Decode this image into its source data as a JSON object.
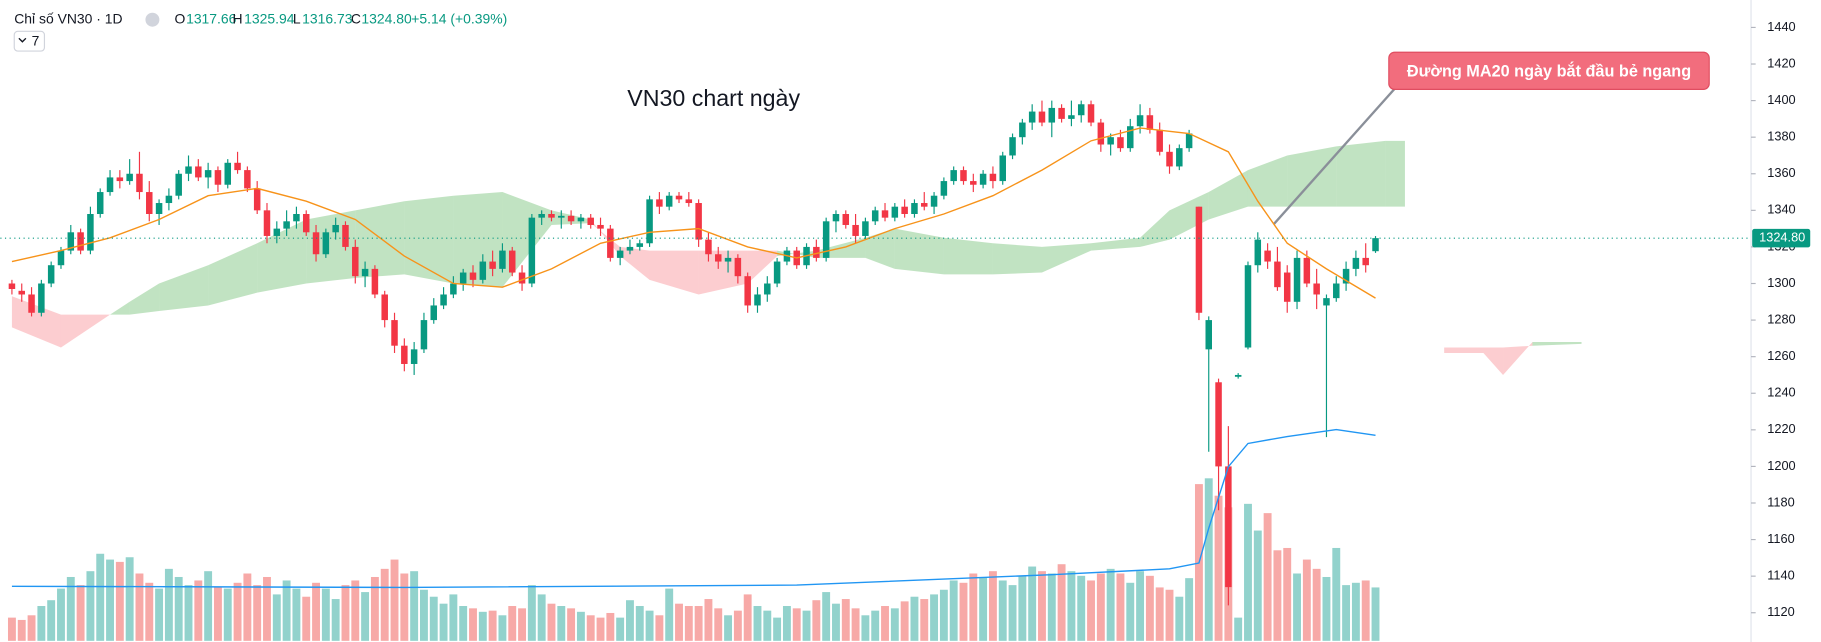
{
  "header": {
    "symbol": "Chỉ số VN30 · 1D",
    "o_label": "O",
    "o": "1317.66",
    "h_label": "H",
    "h": "1325.94",
    "l_label": "L",
    "l": "1316.73",
    "c_label": "C",
    "c": "1324.80",
    "change": "+5.14 (+0.39%)",
    "indicators": "7"
  },
  "chart_data": {
    "type": "candlestick",
    "title": "VN30 chart ngày",
    "annotation": "Đường MA20 ngày bắt đầu bẻ ngang",
    "up_color": "#089981",
    "down_color": "#f23645",
    "ylim": [
      1104,
      1455
    ],
    "yticks": [
      1440,
      1420,
      1400,
      1380,
      1360,
      1340,
      1320,
      1300,
      1280,
      1260,
      1240,
      1220,
      1200,
      1180,
      1160,
      1140,
      1120
    ],
    "grid": false,
    "ohlc": [
      [
        1300,
        1302,
        1294,
        1297
      ],
      [
        1296,
        1300,
        1290,
        1294
      ],
      [
        1294,
        1298,
        1282,
        1284
      ],
      [
        1284,
        1302,
        1282,
        1300
      ],
      [
        1300,
        1312,
        1298,
        1310
      ],
      [
        1310,
        1320,
        1308,
        1318
      ],
      [
        1318,
        1332,
        1316,
        1328
      ],
      [
        1328,
        1330,
        1316,
        1318
      ],
      [
        1318,
        1342,
        1316,
        1338
      ],
      [
        1338,
        1352,
        1336,
        1350
      ],
      [
        1350,
        1362,
        1348,
        1358
      ],
      [
        1358,
        1362,
        1352,
        1356
      ],
      [
        1356,
        1368,
        1354,
        1360
      ],
      [
        1360,
        1372,
        1346,
        1350
      ],
      [
        1350,
        1356,
        1334,
        1338
      ],
      [
        1338,
        1346,
        1332,
        1344
      ],
      [
        1344,
        1352,
        1340,
        1348
      ],
      [
        1348,
        1362,
        1346,
        1360
      ],
      [
        1360,
        1370,
        1356,
        1364
      ],
      [
        1364,
        1368,
        1356,
        1358
      ],
      [
        1358,
        1366,
        1352,
        1362
      ],
      [
        1362,
        1364,
        1350,
        1354
      ],
      [
        1354,
        1368,
        1352,
        1366
      ],
      [
        1366,
        1372,
        1360,
        1362
      ],
      [
        1362,
        1364,
        1350,
        1352
      ],
      [
        1352,
        1356,
        1338,
        1340
      ],
      [
        1340,
        1344,
        1322,
        1326
      ],
      [
        1326,
        1334,
        1322,
        1330
      ],
      [
        1330,
        1340,
        1326,
        1334
      ],
      [
        1334,
        1342,
        1330,
        1338
      ],
      [
        1338,
        1340,
        1326,
        1328
      ],
      [
        1328,
        1332,
        1312,
        1316
      ],
      [
        1316,
        1330,
        1314,
        1328
      ],
      [
        1328,
        1336,
        1324,
        1332
      ],
      [
        1332,
        1334,
        1318,
        1320
      ],
      [
        1320,
        1324,
        1300,
        1304
      ],
      [
        1304,
        1312,
        1298,
        1308
      ],
      [
        1308,
        1310,
        1292,
        1294
      ],
      [
        1294,
        1296,
        1276,
        1280
      ],
      [
        1280,
        1284,
        1262,
        1266
      ],
      [
        1266,
        1270,
        1252,
        1256
      ],
      [
        1256,
        1268,
        1250,
        1264
      ],
      [
        1264,
        1284,
        1262,
        1280
      ],
      [
        1280,
        1292,
        1278,
        1288
      ],
      [
        1288,
        1298,
        1286,
        1294
      ],
      [
        1294,
        1304,
        1292,
        1300
      ],
      [
        1300,
        1308,
        1296,
        1306
      ],
      [
        1306,
        1310,
        1298,
        1302
      ],
      [
        1302,
        1316,
        1300,
        1312
      ],
      [
        1312,
        1318,
        1304,
        1308
      ],
      [
        1308,
        1322,
        1306,
        1318
      ],
      [
        1318,
        1320,
        1304,
        1306
      ],
      [
        1306,
        1310,
        1296,
        1300
      ],
      [
        1300,
        1338,
        1298,
        1336
      ],
      [
        1336,
        1340,
        1332,
        1338
      ],
      [
        1338,
        1340,
        1334,
        1336
      ],
      [
        1336,
        1340,
        1330,
        1337
      ],
      [
        1337,
        1340,
        1332,
        1334
      ],
      [
        1334,
        1338,
        1330,
        1336
      ],
      [
        1336,
        1338,
        1330,
        1332
      ],
      [
        1332,
        1336,
        1326,
        1330
      ],
      [
        1330,
        1332,
        1312,
        1314
      ],
      [
        1314,
        1320,
        1310,
        1318
      ],
      [
        1318,
        1324,
        1316,
        1320
      ],
      [
        1320,
        1324,
        1318,
        1322
      ],
      [
        1322,
        1348,
        1320,
        1346
      ],
      [
        1346,
        1350,
        1338,
        1342
      ],
      [
        1342,
        1350,
        1340,
        1348
      ],
      [
        1348,
        1350,
        1344,
        1346
      ],
      [
        1346,
        1350,
        1342,
        1344
      ],
      [
        1344,
        1346,
        1320,
        1324
      ],
      [
        1324,
        1328,
        1312,
        1316
      ],
      [
        1316,
        1320,
        1308,
        1312
      ],
      [
        1312,
        1318,
        1306,
        1314
      ],
      [
        1314,
        1316,
        1300,
        1304
      ],
      [
        1304,
        1306,
        1284,
        1288
      ],
      [
        1288,
        1298,
        1284,
        1294
      ],
      [
        1294,
        1304,
        1290,
        1300
      ],
      [
        1300,
        1314,
        1298,
        1312
      ],
      [
        1312,
        1320,
        1310,
        1318
      ],
      [
        1318,
        1320,
        1308,
        1310
      ],
      [
        1310,
        1322,
        1308,
        1320
      ],
      [
        1320,
        1324,
        1312,
        1314
      ],
      [
        1314,
        1336,
        1312,
        1334
      ],
      [
        1334,
        1340,
        1328,
        1338
      ],
      [
        1338,
        1340,
        1330,
        1332
      ],
      [
        1332,
        1338,
        1322,
        1326
      ],
      [
        1326,
        1336,
        1324,
        1334
      ],
      [
        1334,
        1342,
        1332,
        1340
      ],
      [
        1340,
        1344,
        1334,
        1336
      ],
      [
        1336,
        1344,
        1334,
        1342
      ],
      [
        1342,
        1346,
        1336,
        1338
      ],
      [
        1338,
        1346,
        1336,
        1344
      ],
      [
        1344,
        1350,
        1340,
        1342
      ],
      [
        1342,
        1350,
        1338,
        1348
      ],
      [
        1348,
        1358,
        1346,
        1356
      ],
      [
        1356,
        1364,
        1354,
        1362
      ],
      [
        1362,
        1364,
        1354,
        1356
      ],
      [
        1356,
        1360,
        1350,
        1354
      ],
      [
        1354,
        1362,
        1352,
        1360
      ],
      [
        1360,
        1364,
        1352,
        1356
      ],
      [
        1356,
        1372,
        1354,
        1370
      ],
      [
        1370,
        1382,
        1368,
        1380
      ],
      [
        1380,
        1390,
        1376,
        1388
      ],
      [
        1388,
        1398,
        1384,
        1394
      ],
      [
        1394,
        1400,
        1386,
        1388
      ],
      [
        1388,
        1400,
        1380,
        1396
      ],
      [
        1396,
        1398,
        1388,
        1390
      ],
      [
        1390,
        1400,
        1386,
        1392
      ],
      [
        1392,
        1400,
        1388,
        1398
      ],
      [
        1398,
        1400,
        1386,
        1388
      ],
      [
        1388,
        1390,
        1372,
        1376
      ],
      [
        1376,
        1382,
        1370,
        1380
      ],
      [
        1380,
        1384,
        1372,
        1374
      ],
      [
        1374,
        1390,
        1372,
        1386
      ],
      [
        1386,
        1398,
        1382,
        1392
      ],
      [
        1392,
        1396,
        1382,
        1384
      ],
      [
        1384,
        1388,
        1370,
        1372
      ],
      [
        1372,
        1376,
        1360,
        1364
      ],
      [
        1364,
        1376,
        1362,
        1374
      ],
      [
        1374,
        1384,
        1372,
        1382
      ],
      [
        1342,
        1342,
        1280,
        1284
      ],
      [
        1264,
        1282,
        1208,
        1280
      ],
      [
        1246,
        1248,
        1176,
        1200
      ],
      [
        1200,
        1222,
        1124,
        1134
      ],
      [
        1249,
        1251,
        1248,
        1250
      ],
      [
        1265,
        1312,
        1264,
        1310
      ],
      [
        1310,
        1328,
        1306,
        1324
      ],
      [
        1318,
        1322,
        1308,
        1312
      ],
      [
        1312,
        1320,
        1296,
        1298
      ],
      [
        1306,
        1310,
        1284,
        1290
      ],
      [
        1290,
        1318,
        1286,
        1314
      ],
      [
        1314,
        1318,
        1298,
        1300
      ],
      [
        1300,
        1308,
        1286,
        1294
      ],
      [
        1288,
        1294,
        1216,
        1292
      ],
      [
        1292,
        1304,
        1290,
        1300
      ],
      [
        1300,
        1312,
        1296,
        1308
      ],
      [
        1308,
        1318,
        1304,
        1314
      ],
      [
        1314,
        1322,
        1306,
        1310
      ],
      [
        1317.66,
        1325.94,
        1316.73,
        1324.8
      ]
    ],
    "volume": [
      20,
      18,
      22,
      30,
      35,
      45,
      55,
      48,
      60,
      75,
      70,
      68,
      72,
      58,
      50,
      45,
      62,
      55,
      48,
      52,
      60,
      46,
      45,
      50,
      58,
      48,
      55,
      40,
      52,
      45,
      38,
      50,
      45,
      36,
      48,
      52,
      42,
      55,
      62,
      70,
      58,
      60,
      44,
      38,
      32,
      40,
      30,
      28,
      25,
      26,
      22,
      30,
      28,
      48,
      40,
      32,
      30,
      28,
      25,
      22,
      20,
      24,
      20,
      35,
      30,
      26,
      22,
      45,
      32,
      30,
      30,
      36,
      28,
      22,
      26,
      40,
      30,
      26,
      20,
      30,
      28,
      26,
      35,
      42,
      32,
      36,
      28,
      22,
      26,
      30,
      28,
      34,
      38,
      36,
      40,
      44,
      52,
      50,
      58,
      55,
      60,
      52,
      48,
      56,
      64,
      60,
      58,
      66,
      60,
      56,
      52,
      58,
      62,
      58,
      50,
      60,
      56,
      46,
      44,
      38,
      54,
      135,
      140,
      125,
      115,
      20,
      118,
      95,
      110,
      78,
      80,
      58,
      70,
      62,
      55,
      80,
      48,
      50,
      52,
      46
    ],
    "ma20": {
      "color": "#f7931a",
      "x": [
        0,
        5,
        10,
        15,
        20,
        25,
        30,
        35,
        40,
        45,
        50,
        55,
        60,
        65,
        70,
        75,
        80,
        85,
        90,
        95,
        100,
        105,
        110,
        115,
        120,
        124,
        127,
        130,
        134,
        139
      ],
      "values": [
        1312,
        1318,
        1325,
        1335,
        1348,
        1352,
        1345,
        1335,
        1315,
        1300,
        1298,
        1308,
        1322,
        1328,
        1330,
        1320,
        1314,
        1320,
        1330,
        1338,
        1348,
        1362,
        1378,
        1385,
        1382,
        1372,
        1345,
        1322,
        1308,
        1292
      ]
    },
    "volume_ma": {
      "color": "#2196f3",
      "x": [
        0,
        40,
        80,
        106,
        118,
        121,
        122,
        124,
        126,
        130,
        135,
        139
      ],
      "values": [
        47,
        46,
        48,
        57,
        62,
        67,
        97,
        150,
        170,
        176,
        182,
        177
      ]
    },
    "cloud": {
      "up_color": "rgba(76,175,80,0.35)",
      "down_color": "rgba(242,54,69,0.25)",
      "x": [
        0,
        5,
        10,
        12,
        15,
        20,
        25,
        30,
        35,
        40,
        45,
        50,
        55,
        59,
        62,
        65,
        70,
        75,
        78,
        82,
        87,
        90,
        95,
        100,
        105,
        110,
        115,
        118,
        122,
        126,
        130,
        135,
        140,
        142,
        144,
        146,
        150,
        152,
        155,
        160
      ],
      "span_a": [
        1276,
        1265,
        1283,
        1290,
        1300,
        1310,
        1322,
        1335,
        1340,
        1345,
        1348,
        1350,
        1340,
        1335,
        1315,
        1302,
        1294,
        1300,
        1315,
        1318,
        1325,
        1330,
        1325,
        1322,
        1320,
        1322,
        1325,
        1340,
        1350,
        1362,
        1370,
        1375,
        1378,
        1378,
        null,
        1262,
        1262,
        1250,
        1268,
        1268
      ],
      "span_b": [
        1293,
        1283,
        1283,
        1283,
        1285,
        1288,
        1295,
        1300,
        1303,
        1305,
        1300,
        1298,
        1332,
        1333,
        1320,
        1318,
        1318,
        1318,
        1318,
        1314,
        1314,
        1308,
        1305,
        1305,
        1306,
        1318,
        1320,
        1324,
        1335,
        1342,
        1342,
        1342,
        1342,
        1342,
        null,
        1265,
        1265,
        1265,
        1266,
        1267
      ]
    }
  }
}
